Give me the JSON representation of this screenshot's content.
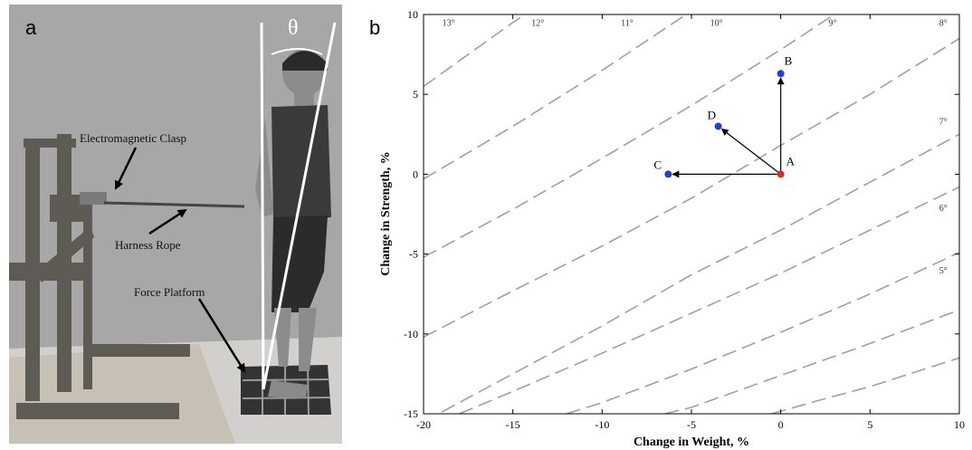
{
  "panel_a": {
    "letter": "a",
    "theta": "θ",
    "labels": {
      "electromagnetic_clasp": "Electromagnetic Clasp",
      "harness_rope": "Harness Rope",
      "force_platform": "Force Platform"
    },
    "colors": {
      "background": "#a7a7a7",
      "wood": "#5e5a54",
      "floor": "#d2d0cc"
    }
  },
  "chart_data": {
    "type": "line",
    "panel_letter": "b",
    "title": "",
    "xlabel": "Change in Weight, %",
    "ylabel": "Change in Strength, %",
    "xlim": [
      -20,
      10
    ],
    "ylim": [
      -15,
      10
    ],
    "xticks": [
      -20,
      -15,
      -10,
      -5,
      0,
      5,
      10
    ],
    "yticks": [
      -15,
      -10,
      -5,
      0,
      5,
      10
    ],
    "grid": false,
    "series": [
      {
        "name": "13°",
        "label_x": -18.6,
        "label_y": 9.3,
        "points": [
          [
            -20,
            5.5
          ],
          [
            -15,
            9.5
          ],
          [
            -14.3,
            10
          ]
        ]
      },
      {
        "name": "12°",
        "label_x": -13.6,
        "label_y": 9.3,
        "points": [
          [
            -20,
            -0.3
          ],
          [
            -15,
            3.0
          ],
          [
            -10,
            6.5
          ],
          [
            -5.3,
            10
          ]
        ]
      },
      {
        "name": "11°",
        "label_x": -8.6,
        "label_y": 9.3,
        "points": [
          [
            -20,
            -5.2
          ],
          [
            -15,
            -2.2
          ],
          [
            -10,
            1.0
          ],
          [
            -5,
            4.3
          ],
          [
            0,
            7.8
          ],
          [
            3.0,
            10
          ]
        ]
      },
      {
        "name": "10°",
        "label_x": -3.6,
        "label_y": 9.3,
        "points": [
          [
            -20,
            -10.2
          ],
          [
            -15,
            -7.3
          ],
          [
            -10,
            -4.5
          ],
          [
            -5,
            -1.5
          ],
          [
            0,
            1.8
          ],
          [
            5,
            5.0
          ],
          [
            10,
            8.5
          ]
        ]
      },
      {
        "name": "9°",
        "label_x": 2.9,
        "label_y": 9.3,
        "points": [
          [
            -20,
            -15.5
          ],
          [
            -15,
            -12.5
          ],
          [
            -10,
            -9.5
          ],
          [
            -5,
            -6.3
          ],
          [
            0,
            -3.5
          ],
          [
            5,
            -0.5
          ],
          [
            10,
            2.5
          ]
        ]
      },
      {
        "name": "8°",
        "label_x": 9.1,
        "label_y": 9.3,
        "points": [
          [
            -18,
            -15
          ],
          [
            -15,
            -13.6
          ],
          [
            -10,
            -11.2
          ],
          [
            -5,
            -8.7
          ],
          [
            0,
            -6.2
          ],
          [
            5,
            -3.5
          ],
          [
            10,
            -0.8
          ]
        ]
      },
      {
        "name": "7°",
        "label_x": 9.1,
        "label_y": 3.1,
        "points": [
          [
            -12,
            -15
          ],
          [
            -10,
            -14.3
          ],
          [
            -5,
            -12.2
          ],
          [
            0,
            -9.9
          ],
          [
            5,
            -7.5
          ],
          [
            10,
            -4.9
          ]
        ]
      },
      {
        "name": "6°",
        "label_x": 9.1,
        "label_y": -2.3,
        "points": [
          [
            -6.5,
            -15
          ],
          [
            -5,
            -14.6
          ],
          [
            0,
            -12.6
          ],
          [
            5,
            -10.6
          ],
          [
            10,
            -8.5
          ]
        ]
      },
      {
        "name": "5°",
        "label_x": 9.1,
        "label_y": -6.2,
        "points": [
          [
            -0.5,
            -15
          ],
          [
            2,
            -14.2
          ],
          [
            5,
            -13.3
          ],
          [
            7.5,
            -12.4
          ],
          [
            10,
            -11.5
          ]
        ]
      }
    ],
    "points": [
      {
        "name": "A",
        "x": 0,
        "y": 0,
        "color": "#e8281e"
      },
      {
        "name": "B",
        "x": 0,
        "y": 6.3,
        "color": "#1c3fd6"
      },
      {
        "name": "C",
        "x": -6.3,
        "y": 0,
        "color": "#1c3fd6"
      },
      {
        "name": "D",
        "x": -3.5,
        "y": 3.0,
        "color": "#1c3fd6"
      }
    ],
    "arrows": [
      {
        "from": "A",
        "to": "B"
      },
      {
        "from": "A",
        "to": "C"
      },
      {
        "from": "A",
        "to": "D"
      }
    ],
    "line_color": "#a0a0a0"
  }
}
